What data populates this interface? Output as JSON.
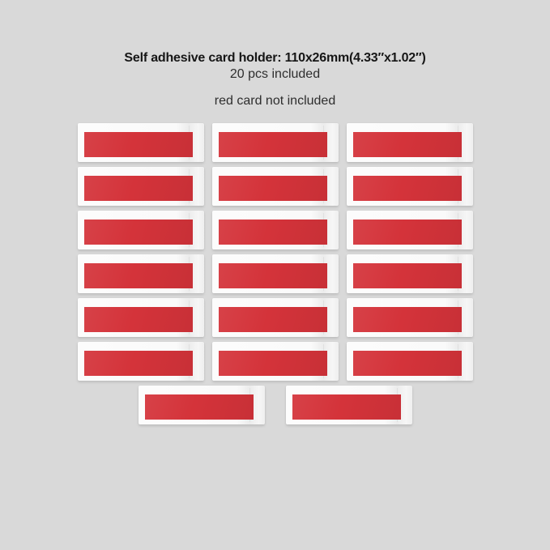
{
  "page": {
    "background_color": "#d9d9d9"
  },
  "header": {
    "title": "Self adhesive card holder: 110x26mm(4.33″x1.02″)",
    "subtitle": "20 pcs included",
    "note": "red card not included"
  },
  "product_display": {
    "item": "self-adhesive card holder with red card insert",
    "total_pcs": 20,
    "rows": [
      3,
      3,
      3,
      3,
      3,
      3,
      2
    ],
    "colors": {
      "background": "#d9d9d9",
      "holder_frame": "#fafafa",
      "red_card": "#d4333a"
    }
  }
}
